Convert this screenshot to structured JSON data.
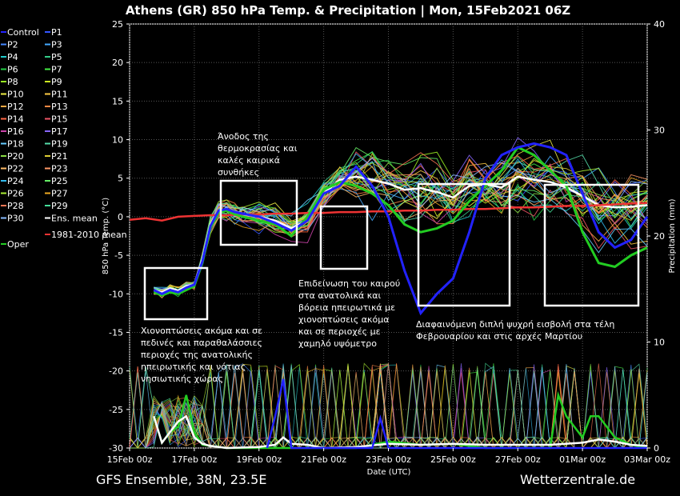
{
  "chart_data": {
    "type": "line",
    "title": "Athens  (GR)  850 hPa Temp. & Precipitation | Mon, 15Feb2021 06Z",
    "ylabel_left": "850 hPa Temp. (°C)",
    "ylabel_right": "Precipitation (mm)",
    "xlabel": "Date (UTC)",
    "ylim_left": [
      -30,
      25
    ],
    "ylim_right": [
      0,
      40
    ],
    "yticks_left": [
      "25",
      "20",
      "15",
      "10",
      "5",
      "0",
      "-5",
      "-10",
      "-15",
      "-20",
      "-25",
      "-30"
    ],
    "yticks_right": [
      "40",
      "30",
      "20",
      "10",
      "0"
    ],
    "xrange_days": [
      0,
      16
    ],
    "xticks": [
      "15Feb 00z",
      "17Feb 00z",
      "19Feb 00z",
      "21Feb 00z",
      "23Feb 00z",
      "25Feb 00z",
      "27Feb 00z",
      "01Mar 00z",
      "03Mar 00z"
    ],
    "legend": [
      "Control",
      "P1",
      "P2",
      "P3",
      "P4",
      "P5",
      "P6",
      "P7",
      "P8",
      "P9",
      "P10",
      "P11",
      "P12",
      "P13",
      "P14",
      "P15",
      "P16",
      "P17",
      "P18",
      "P19",
      "P20",
      "P21",
      "P22",
      "P23",
      "P24",
      "P25",
      "P26",
      "P27",
      "P28",
      "P29",
      "P30",
      "Ens. mean",
      "1981-2010 mean",
      "Oper"
    ],
    "series": [
      {
        "name": "Ens. mean",
        "color": "#ffffff",
        "x": [
          0.75,
          1,
          1.25,
          1.5,
          1.75,
          2,
          2.25,
          2.5,
          2.75,
          3,
          3.25,
          3.5,
          4,
          4.5,
          5,
          5.5,
          6,
          6.5,
          7,
          7.5,
          8,
          8.5,
          9,
          9.5,
          10,
          10.5,
          11,
          11.5,
          12,
          12.5,
          13,
          13.5,
          14,
          14.5,
          15,
          15.5,
          16
        ],
        "y": [
          -9.5,
          -9.8,
          -9.3,
          -9.6,
          -9,
          -8.8,
          -5.5,
          -1,
          0.8,
          1,
          0.5,
          0.3,
          0,
          -0.5,
          -1.5,
          -0.5,
          3,
          4.8,
          5.2,
          4.8,
          4.3,
          3.5,
          3.7,
          3.2,
          2.5,
          4,
          4.2,
          3.8,
          5.2,
          4.8,
          4.5,
          3.8,
          2.7,
          1.5,
          1.2,
          1.3,
          1.5
        ]
      },
      {
        "name": "1981-2010 mean",
        "color": "#ee3333",
        "x": [
          0,
          0.5,
          1,
          1.5,
          2,
          2.5,
          3,
          3.5,
          4,
          4.5,
          5,
          5.5,
          6,
          6.5,
          7,
          7.5,
          8,
          8.5,
          9,
          9.5,
          10,
          10.5,
          11,
          11.5,
          12,
          12.5,
          13,
          13.5,
          14,
          14.5,
          15,
          15.5,
          16
        ],
        "y": [
          -0.4,
          -0.2,
          -0.5,
          0,
          0.1,
          0.2,
          0.2,
          0.3,
          0.3,
          0.4,
          0.4,
          0.5,
          0.5,
          0.6,
          0.6,
          0.7,
          0.7,
          0.8,
          0.8,
          0.9,
          0.9,
          1,
          1,
          1.1,
          1.2,
          1.2,
          1.3,
          1.4,
          1.4,
          1.5,
          1.6,
          1.7,
          1.8
        ]
      },
      {
        "name": "Oper",
        "color": "#22cc22",
        "x": [
          0.75,
          1,
          1.25,
          1.5,
          1.75,
          2,
          2.25,
          2.5,
          2.75,
          3,
          3.25,
          3.5,
          4,
          4.5,
          5,
          5.5,
          6,
          6.5,
          7,
          7.5,
          8,
          8.5,
          9,
          9.5,
          10,
          10.5,
          11,
          11.5,
          12,
          12.5,
          13,
          13.5,
          14,
          14.5,
          15,
          15.5,
          16
        ],
        "y": [
          -9.8,
          -10.2,
          -9.8,
          -10,
          -9.5,
          -9,
          -6,
          -1.5,
          0.5,
          0.8,
          0.3,
          0,
          -0.5,
          -1,
          -2.5,
          0,
          3.5,
          4.5,
          4,
          3,
          1.5,
          -1,
          -2,
          -1.5,
          -0.5,
          2,
          4,
          6,
          9,
          8,
          6,
          4,
          -2,
          -6,
          -6.5,
          -5,
          -4
        ]
      },
      {
        "name": "Control",
        "color": "#2222ff",
        "x": [
          0.75,
          1,
          1.25,
          1.5,
          1.75,
          2,
          2.25,
          2.5,
          2.75,
          3,
          3.25,
          3.5,
          4,
          4.5,
          5,
          5.5,
          6,
          6.5,
          7,
          7.5,
          8,
          8.5,
          9,
          9.5,
          10,
          10.5,
          11,
          11.5,
          12,
          12.5,
          13,
          13.5,
          14,
          14.5,
          15,
          15.5,
          16
        ],
        "y": [
          -9.5,
          -10,
          -9.5,
          -9.8,
          -9.2,
          -8.8,
          -5.8,
          -1.2,
          0.8,
          1,
          0.6,
          0.4,
          0,
          -0.8,
          -1.8,
          -0.5,
          3,
          4,
          6.5,
          4,
          0,
          -7,
          -12.5,
          -10,
          -8,
          -2,
          5,
          8,
          9,
          9.5,
          9,
          8,
          3,
          -2,
          -4,
          -3,
          0
        ]
      }
    ],
    "precip_series": [
      {
        "name": "Oper",
        "color": "#22cc22",
        "x": [
          0.75,
          1,
          1.25,
          1.5,
          1.75,
          2,
          2.25,
          3,
          4,
          5,
          6,
          7,
          8,
          9,
          10,
          11,
          12,
          13,
          13.25,
          13.5,
          13.75,
          14,
          14.25,
          14.5,
          14.75,
          15,
          15.5,
          16
        ],
        "y": [
          3,
          0.5,
          1.5,
          2,
          5,
          1.5,
          0.3,
          0,
          0,
          0,
          0,
          0,
          0.6,
          0.3,
          0.4,
          0,
          0,
          0,
          5,
          3,
          2,
          1,
          3,
          3,
          2,
          1,
          0.3,
          0
        ]
      },
      {
        "name": "Ens. mean",
        "color": "#ffffff",
        "x": [
          0.75,
          1,
          1.25,
          1.5,
          1.75,
          2,
          2.25,
          2.5,
          3,
          4,
          4.5,
          4.75,
          5,
          5.5,
          6,
          7,
          8,
          9,
          10,
          11,
          12,
          13,
          14,
          14.5,
          15,
          15.5,
          16
        ],
        "y": [
          3,
          0.5,
          1.5,
          2.5,
          3,
          1,
          0.4,
          0.2,
          0,
          0.1,
          0.3,
          1,
          0.4,
          0.3,
          0,
          0.1,
          0.4,
          0.3,
          0.4,
          0.3,
          0.3,
          0.3,
          0.5,
          0.8,
          0.6,
          0.3,
          0.2
        ]
      },
      {
        "name": "Control",
        "color": "#2222ff",
        "x": [
          4.25,
          4.5,
          4.75,
          5,
          5.5,
          7,
          7.25,
          7.5,
          7.75,
          8,
          9,
          10,
          11,
          12,
          13,
          14,
          15,
          16
        ],
        "y": [
          0,
          3,
          6.5,
          0,
          0,
          0,
          0,
          0,
          2.8,
          0,
          0,
          0,
          0,
          0,
          0,
          0,
          0,
          0
        ]
      }
    ]
  },
  "annotations": [
    "Άνοδος της\nθερμοκρασίας και\nκαλές καιρικά\nσυνθήκες",
    "Χιονοπτώσεις ακόμα και σε\nπεδινές και παραθαλάσσιες\nπεριοχές της ανατολικής\nηπειρωτικής και νότιας\nνησιωτικής χώρας",
    "Επιδείνωση του καιρού\nστα ανατολικά και\nβόρεια ηπειρωτικά με\nχιονοπτώσεις ακόμα\nκαι σε περιοχές με\nχαμηλό υψόμετρο",
    "Διαφαινόμενη διπλή ψυχρή εισβολή στα τέλη\nΦεβρουαρίου και στις αρχές Μαρτίου"
  ],
  "footer": {
    "left": "GFS Ensemble, 38N, 23.5E",
    "right": "Wetterzentrale.de"
  }
}
